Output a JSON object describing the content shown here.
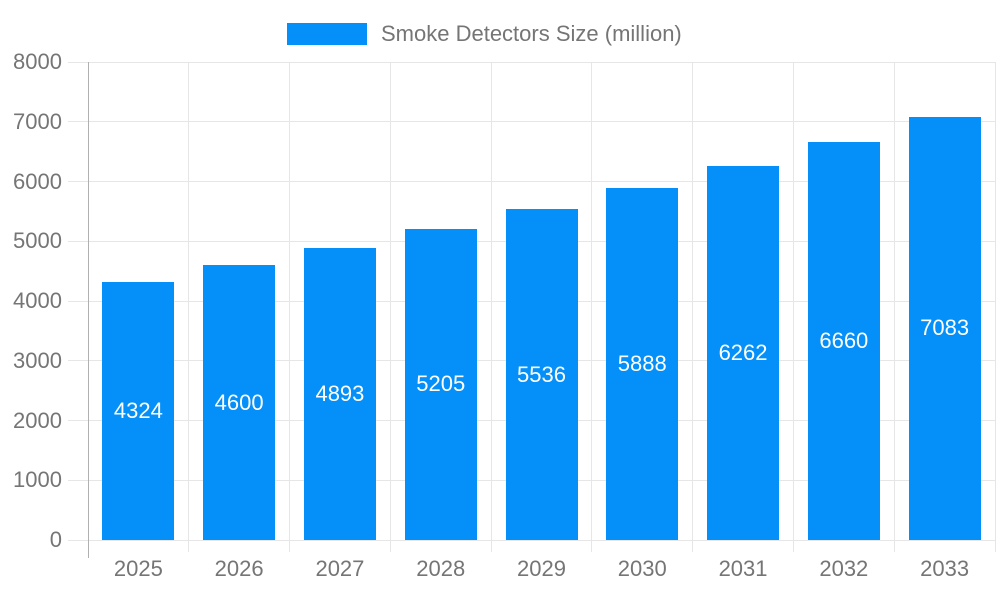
{
  "legend": {
    "label": "Smoke Detectors Size (million)"
  },
  "chart_data": {
    "type": "bar",
    "title": "Smoke Detectors Size (million)",
    "series_name": "Smoke Detectors Size (million)",
    "categories": [
      "2025",
      "2026",
      "2027",
      "2028",
      "2029",
      "2030",
      "2031",
      "2032",
      "2033"
    ],
    "values": [
      4324,
      4600,
      4893,
      5205,
      5536,
      5888,
      6262,
      6660,
      7083
    ],
    "xlabel": "",
    "ylabel": "",
    "ylim": [
      0,
      8000
    ],
    "yticks": [
      0,
      1000,
      2000,
      3000,
      4000,
      5000,
      6000,
      7000,
      8000
    ],
    "grid": true,
    "legend_position": "top-center",
    "value_labels_position": "inside-center",
    "colors": {
      "bar": "#0490f8",
      "grid_line": "#e6e6e6",
      "axis_line": "#b0b0b0",
      "axis_text": "#757575",
      "value_label_text": "#ffffff",
      "background": "#ffffff"
    }
  }
}
